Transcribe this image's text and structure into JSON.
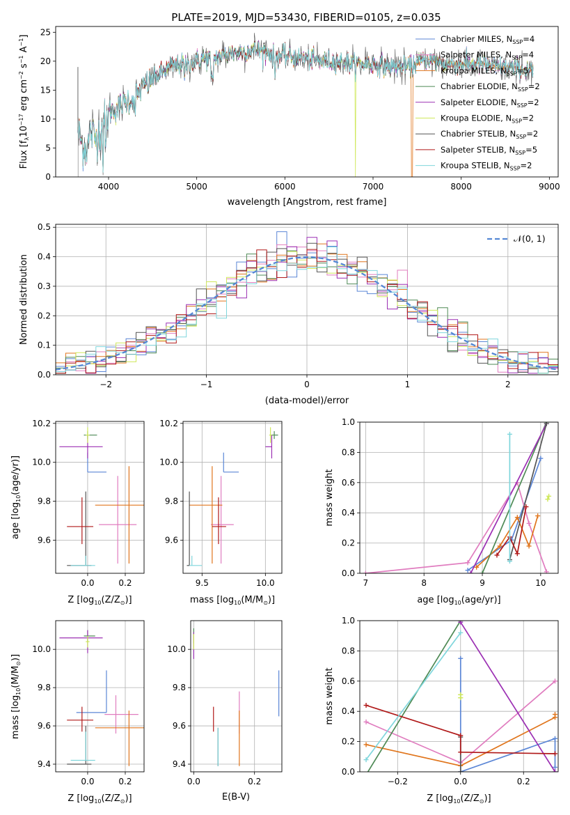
{
  "title": "PLATE=2019, MJD=53430, FIBERID=0105, z=0.035",
  "colors": {
    "chabrier_miles": "#5b86d6",
    "salpeter_miles": "#e07cbf",
    "kroupa_miles": "#e0751c",
    "chabrier_elodie": "#4e8a55",
    "salpeter_elodie": "#9b2fb3",
    "kroupa_elodie": "#cfe85a",
    "chabrier_stelib": "#555555",
    "salpeter_stelib": "#b01818",
    "kroupa_stelib": "#7fd6dc",
    "gaussian": "#5588d5",
    "grid": "#b0b0b0"
  },
  "chart_data": [
    {
      "type": "line",
      "xlabel": "wavelength [Angstrom, rest frame]",
      "ylabel": "Flux [f",
      "ylabel_sub": "λ",
      "ylabel_mid": "10",
      "ylabel_sup1": "−17",
      "ylabel_rest": " erg cm",
      "ylabel_sup2": "−2",
      "ylabel_s": " s",
      "ylabel_sup3": "−1",
      "ylabel_a": " A",
      "ylabel_sup4": "−1",
      "ylabel_end": "]",
      "xlim": [
        3400,
        9100
      ],
      "ylim": [
        0,
        26
      ],
      "xticks": [
        "4000",
        "5000",
        "6000",
        "7000",
        "8000",
        "9000"
      ],
      "yticks": [
        "0",
        "5",
        "10",
        "15",
        "20",
        "25"
      ],
      "grid": false,
      "legend_position": "upper-right",
      "legend": [
        {
          "label": "Chabrier MILES, N",
          "sub": "SSP",
          "n": "=4"
        },
        {
          "label": "Salpeter MILES, N",
          "sub": "SSP",
          "n": "=4"
        },
        {
          "label": "Kroupa MILES, N",
          "sub": "SSP",
          "n": "=5"
        },
        {
          "label": "Chabrier ELODIE, N",
          "sub": "SSP",
          "n": "=2"
        },
        {
          "label": "Salpeter ELODIE, N",
          "sub": "SSP",
          "n": "=2"
        },
        {
          "label": "Kroupa ELODIE, N",
          "sub": "SSP",
          "n": "=2"
        },
        {
          "label": "Chabrier STELIB, N",
          "sub": "SSP",
          "n": "=2"
        },
        {
          "label": "Salpeter STELIB, N",
          "sub": "SSP",
          "n": "=5"
        },
        {
          "label": "Kroupa STELIB, N",
          "sub": "SSP",
          "n": "=2"
        }
      ],
      "spectrum_anchors": {
        "x": [
          3650,
          3700,
          3760,
          3800,
          3850,
          3900,
          3950,
          4000,
          4100,
          4200,
          4300,
          4400,
          4500,
          4600,
          4700,
          4800,
          4900,
          5000,
          5100,
          5200,
          5300,
          5400,
          5500,
          5600,
          5700,
          5800,
          5900,
          6000,
          6200,
          6400,
          6600,
          6800,
          7000,
          7200,
          7400,
          7500,
          7600,
          7800,
          8000,
          8200,
          8400,
          8600,
          8800
        ],
        "y": [
          8.5,
          5.5,
          5.0,
          8.0,
          6.5,
          8.0,
          9.5,
          11.0,
          12.0,
          13.0,
          14.0,
          15.5,
          17.0,
          18.0,
          19.0,
          19.5,
          19.5,
          20.0,
          20.5,
          20.5,
          21.0,
          21.5,
          21.5,
          22.0,
          22.0,
          21.5,
          21.0,
          21.0,
          20.5,
          20.0,
          20.0,
          19.5,
          19.5,
          19.0,
          19.0,
          19.5,
          20.5,
          19.5,
          19.5,
          19.5,
          19.0,
          18.8,
          18.5
        ]
      },
      "features": [
        {
          "note": "orange cutoff",
          "x": 7430
        },
        {
          "note": "yellow dip",
          "x": 6800
        }
      ]
    },
    {
      "type": "histogram",
      "xlabel": "(data-model)/error",
      "ylabel": "Normed distribution",
      "xlim": [
        -2.5,
        2.5
      ],
      "ylim": [
        0,
        0.51
      ],
      "xticks": [
        "−2",
        "−1",
        "0",
        "1",
        "2"
      ],
      "yticks": [
        "0.0",
        "0.1",
        "0.2",
        "0.3",
        "0.4",
        "0.5"
      ],
      "grid": true,
      "legend_position": "upper-right",
      "legend_label": "𝒩(0, 1)",
      "bin_width": 0.1,
      "bin_start": -2.5
    },
    {
      "type": "scatter",
      "name": "age_vs_Z",
      "xlabel_pre": "Z [log",
      "xlabel_sub": "10",
      "xlabel_post": "(Z/Z",
      "xlabel_sub2": "⊙",
      "xlabel_end": ")]",
      "ylabel_pre": "age  [log",
      "ylabel_sub": "10",
      "ylabel_post": "(age/yr)]",
      "xlim": [
        -0.17,
        0.3
      ],
      "ylim": [
        9.43,
        10.21
      ],
      "xticks": [
        "0.0",
        "0.2"
      ],
      "yticks": [
        "9.6",
        "9.8",
        "10.0",
        "10.2"
      ],
      "grid": true,
      "points": [
        {
          "series": "chabrier_miles",
          "x": 0.0,
          "y": 9.95,
          "xerr": [
            0.0,
            0.1
          ],
          "yerr": [
            0.0,
            0.1
          ]
        },
        {
          "series": "salpeter_miles",
          "x": 0.16,
          "y": 9.68,
          "xerr": [
            0.1,
            0.1
          ],
          "yerr": [
            0.2,
            0.25
          ]
        },
        {
          "series": "kroupa_miles",
          "x": 0.22,
          "y": 9.78,
          "xerr": [
            0.18,
            0.08
          ],
          "yerr": [
            0.3,
            0.2
          ]
        },
        {
          "series": "chabrier_elodie",
          "x": 0.0,
          "y": 10.14,
          "xerr": [
            0.02,
            0.05
          ],
          "yerr": [
            0.02,
            0.02
          ]
        },
        {
          "series": "salpeter_elodie",
          "x": 0.0,
          "y": 10.08,
          "xerr": [
            0.15,
            0.08
          ],
          "yerr": [
            0.06,
            0.06
          ]
        },
        {
          "series": "kroupa_elodie",
          "x": 0.0,
          "y": 10.14,
          "xerr": [
            0.01,
            0.01
          ],
          "yerr": [
            0.04,
            0.04
          ]
        },
        {
          "series": "chabrier_stelib",
          "x": -0.01,
          "y": 9.47,
          "xerr": [
            0.1,
            0.03
          ],
          "yerr": [
            0.0,
            0.38
          ]
        },
        {
          "series": "salpeter_stelib",
          "x": -0.03,
          "y": 9.67,
          "xerr": [
            0.08,
            0.06
          ],
          "yerr": [
            0.09,
            0.15
          ]
        },
        {
          "series": "kroupa_stelib",
          "x": -0.01,
          "y": 9.47,
          "xerr": [
            0.08,
            0.05
          ],
          "yerr": [
            0.0,
            0.05
          ]
        }
      ]
    },
    {
      "type": "scatter",
      "name": "age_vs_mass",
      "xlabel_pre": "mass [log",
      "xlabel_sub": "10",
      "xlabel_post": "(M/M",
      "xlabel_sub2": "⊙",
      "xlabel_end": ")]",
      "xlim": [
        9.35,
        10.13
      ],
      "ylim": [
        9.43,
        10.21
      ],
      "xticks": [
        "9.5",
        "10.0"
      ],
      "yticks": [
        "9.6",
        "9.8",
        "10.0",
        "10.2"
      ],
      "grid": true,
      "points": [
        {
          "series": "chabrier_miles",
          "x": 9.67,
          "y": 9.95,
          "xerr": [
            0.0,
            0.12
          ],
          "yerr": [
            0.0,
            0.1
          ]
        },
        {
          "series": "salpeter_miles",
          "x": 9.65,
          "y": 9.68,
          "xerr": [
            0.08,
            0.1
          ],
          "yerr": [
            0.2,
            0.25
          ]
        },
        {
          "series": "kroupa_miles",
          "x": 9.58,
          "y": 9.78,
          "xerr": [
            0.18,
            0.08
          ],
          "yerr": [
            0.3,
            0.2
          ]
        },
        {
          "series": "chabrier_elodie",
          "x": 10.07,
          "y": 10.14,
          "xerr": [
            0.03,
            0.03
          ],
          "yerr": [
            0.02,
            0.02
          ]
        },
        {
          "series": "salpeter_elodie",
          "x": 10.05,
          "y": 10.08,
          "xerr": [
            0.05,
            0.0
          ],
          "yerr": [
            0.06,
            0.06
          ]
        },
        {
          "series": "kroupa_elodie",
          "x": 10.04,
          "y": 10.14,
          "xerr": [
            0.01,
            0.01
          ],
          "yerr": [
            0.04,
            0.04
          ]
        },
        {
          "series": "chabrier_stelib",
          "x": 9.4,
          "y": 9.47,
          "xerr": [
            0.02,
            0.0
          ],
          "yerr": [
            0.0,
            0.38
          ]
        },
        {
          "series": "salpeter_stelib",
          "x": 9.63,
          "y": 9.67,
          "xerr": [
            0.05,
            0.06
          ],
          "yerr": [
            0.09,
            0.15
          ]
        },
        {
          "series": "kroupa_stelib",
          "x": 9.42,
          "y": 9.47,
          "xerr": [
            0.02,
            0.08
          ],
          "yerr": [
            0.0,
            0.05
          ]
        }
      ]
    },
    {
      "type": "line",
      "name": "mass_weight_vs_age",
      "xlabel_pre": "age  [log",
      "xlabel_sub": "10",
      "xlabel_post": "(age/yr)]",
      "ylabel": "mass weight",
      "xlim": [
        6.9,
        10.3
      ],
      "ylim": [
        0,
        1
      ],
      "xticks": [
        "7",
        "8",
        "9",
        "10"
      ],
      "yticks": [
        "0.0",
        "0.2",
        "0.4",
        "0.6",
        "0.8",
        "1.0"
      ],
      "grid": true,
      "series": [
        {
          "key": "chabrier_miles",
          "x": [
            8.75,
            9.5,
            10.0
          ],
          "y": [
            0.02,
            0.22,
            0.76
          ]
        },
        {
          "key": "salpeter_miles",
          "x": [
            7.0,
            8.75,
            9.6,
            9.8,
            10.1
          ],
          "y": [
            0.0,
            0.07,
            0.6,
            0.33,
            0.01
          ]
        },
        {
          "key": "kroupa_miles",
          "x": [
            8.9,
            9.3,
            9.6,
            9.8,
            9.95
          ],
          "y": [
            0.04,
            0.18,
            0.37,
            0.18,
            0.38
          ]
        },
        {
          "key": "chabrier_elodie",
          "x": [
            9.0,
            10.1
          ],
          "y": [
            0.0,
            1.0
          ]
        },
        {
          "key": "salpeter_elodie",
          "x": [
            8.8,
            10.1
          ],
          "y": [
            0.0,
            0.99
          ]
        },
        {
          "key": "kroupa_elodie",
          "x": [
            10.12,
            10.14
          ],
          "y": [
            0.49,
            0.51
          ]
        },
        {
          "key": "chabrier_stelib",
          "x": [
            9.47,
            10.1
          ],
          "y": [
            0.09,
            0.99
          ]
        },
        {
          "key": "salpeter_stelib",
          "x": [
            9.25,
            9.47,
            9.6,
            9.75
          ],
          "y": [
            0.12,
            0.24,
            0.13,
            0.44
          ]
        },
        {
          "key": "kroupa_stelib",
          "x": [
            9.47,
            9.47
          ],
          "y": [
            0.08,
            0.92
          ]
        }
      ]
    },
    {
      "type": "scatter",
      "name": "mass_vs_Z",
      "xlabel_pre": "Z [log",
      "xlabel_sub": "10",
      "xlabel_post": "(Z/Z",
      "xlabel_sub2": "⊙",
      "xlabel_end": ")]",
      "ylabel_pre": "mass [log",
      "ylabel_sub": "10",
      "ylabel_post": "(M/M",
      "ylabel_sub2": "⊙",
      "ylabel_end": ")]",
      "xlim": [
        -0.17,
        0.3
      ],
      "ylim": [
        9.36,
        10.15
      ],
      "xticks": [
        "0.0",
        "0.2"
      ],
      "yticks": [
        "9.4",
        "9.6",
        "9.8",
        "10.0"
      ],
      "grid": true,
      "points": [
        {
          "series": "chabrier_miles",
          "x": 0.1,
          "y": 9.67,
          "xerr": [
            0.16,
            0.0
          ],
          "yerr": [
            0.0,
            0.22
          ]
        },
        {
          "series": "salpeter_miles",
          "x": 0.15,
          "y": 9.66,
          "xerr": [
            0.06,
            0.12
          ],
          "yerr": [
            0.1,
            0.1
          ]
        },
        {
          "series": "kroupa_miles",
          "x": 0.22,
          "y": 9.59,
          "xerr": [
            0.18,
            0.08
          ],
          "yerr": [
            0.2,
            0.09
          ]
        },
        {
          "series": "chabrier_elodie",
          "x": 0.0,
          "y": 10.07,
          "xerr": [
            0.02,
            0.04
          ],
          "yerr": [
            0.03,
            0.03
          ]
        },
        {
          "series": "salpeter_elodie",
          "x": 0.0,
          "y": 10.06,
          "xerr": [
            0.15,
            0.08
          ],
          "yerr": [
            0.08,
            0.04
          ]
        },
        {
          "series": "kroupa_elodie",
          "x": 0.0,
          "y": 10.04,
          "xerr": [
            0.01,
            0.01
          ],
          "yerr": [
            0.03,
            0.03
          ]
        },
        {
          "series": "chabrier_stelib",
          "x": -0.01,
          "y": 9.4,
          "xerr": [
            0.1,
            0.03
          ],
          "yerr": [
            0.0,
            0.2
          ]
        },
        {
          "series": "salpeter_stelib",
          "x": -0.03,
          "y": 9.63,
          "xerr": [
            0.08,
            0.06
          ],
          "yerr": [
            0.06,
            0.07
          ]
        },
        {
          "series": "kroupa_stelib",
          "x": -0.01,
          "y": 9.42,
          "xerr": [
            0.08,
            0.05
          ],
          "yerr": [
            0.0,
            0.15
          ]
        }
      ]
    },
    {
      "type": "scatter",
      "name": "mass_vs_ebv",
      "xlabel": "E(B-V)",
      "xlim": [
        -0.01,
        0.29
      ],
      "ylim": [
        9.36,
        10.15
      ],
      "xticks": [
        "0.0",
        "0.2"
      ],
      "yticks": [
        "9.4",
        "9.6",
        "9.8",
        "10.0"
      ],
      "grid": true,
      "points": [
        {
          "series": "chabrier_miles",
          "x": 0.28,
          "y": 9.77,
          "xerr": [
            0,
            0
          ],
          "yerr": [
            0.12,
            0.12
          ]
        },
        {
          "series": "salpeter_miles",
          "x": 0.15,
          "y": 9.66,
          "xerr": [
            0,
            0
          ],
          "yerr": [
            0.1,
            0.12
          ]
        },
        {
          "series": "kroupa_miles",
          "x": 0.15,
          "y": 9.54,
          "xerr": [
            0,
            0
          ],
          "yerr": [
            0.15,
            0.14
          ]
        },
        {
          "series": "chabrier_elodie",
          "x": 0.0,
          "y": 10.07,
          "xerr": [
            0,
            0
          ],
          "yerr": [
            0.04,
            0.04
          ]
        },
        {
          "series": "salpeter_elodie",
          "x": 0.0,
          "y": 10.02,
          "xerr": [
            0,
            0
          ],
          "yerr": [
            0.07,
            0.07
          ]
        },
        {
          "series": "kroupa_elodie",
          "x": 0.0,
          "y": 10.04,
          "xerr": [
            0,
            0
          ],
          "yerr": [
            0.04,
            0.04
          ]
        },
        {
          "series": "chabrier_stelib",
          "x": 0.08,
          "y": 9.49,
          "xerr": [
            0,
            0
          ],
          "yerr": [
            0.1,
            0.1
          ]
        },
        {
          "series": "salpeter_stelib",
          "x": 0.065,
          "y": 9.63,
          "xerr": [
            0,
            0
          ],
          "yerr": [
            0.06,
            0.07
          ]
        },
        {
          "series": "kroupa_stelib",
          "x": 0.08,
          "y": 9.49,
          "xerr": [
            0,
            0
          ],
          "yerr": [
            0.1,
            0.1
          ]
        }
      ]
    },
    {
      "type": "line",
      "name": "mass_weight_vs_Z",
      "xlabel_pre": "Z [log",
      "xlabel_sub": "10",
      "xlabel_post": "(Z/Z",
      "xlabel_sub2": "⊙",
      "xlabel_end": ")]",
      "ylabel": "mass weight",
      "xlim": [
        -0.32,
        0.31
      ],
      "ylim": [
        0,
        1
      ],
      "xticks": [
        "−0.2",
        "0.0",
        "0.2"
      ],
      "yticks": [
        "0.0",
        "0.2",
        "0.4",
        "0.6",
        "0.8",
        "1.0"
      ],
      "grid": true,
      "series": [
        {
          "key": "chabrier_miles",
          "x": [
            0.0,
            0.0,
            0.3,
            0.3
          ],
          "y": [
            0.75,
            0.0,
            0.22,
            0.03
          ]
        },
        {
          "key": "salpeter_miles",
          "x": [
            -0.3,
            0.0,
            0.3
          ],
          "y": [
            0.33,
            0.06,
            0.6
          ]
        },
        {
          "key": "kroupa_miles",
          "x": [
            -0.3,
            0.0,
            0.3,
            0.3
          ],
          "y": [
            0.18,
            0.04,
            0.36,
            0.38
          ]
        },
        {
          "key": "chabrier_elodie",
          "x": [
            -0.3,
            0.0
          ],
          "y": [
            -0.02,
            1.0
          ]
        },
        {
          "key": "salpeter_elodie",
          "x": [
            0.0,
            0.3
          ],
          "y": [
            0.99,
            0.0
          ]
        },
        {
          "key": "kroupa_elodie",
          "x": [
            0.0,
            0.0
          ],
          "y": [
            0.49,
            0.51
          ]
        },
        {
          "key": "chabrier_stelib",
          "x": [
            0.0,
            0.0
          ],
          "y": [
            0.0,
            0.23
          ]
        },
        {
          "key": "salpeter_stelib",
          "x": [
            -0.3,
            0.0,
            0.0,
            0.3
          ],
          "y": [
            0.44,
            0.24,
            0.13,
            0.12
          ]
        },
        {
          "key": "kroupa_stelib",
          "x": [
            -0.3,
            0.0
          ],
          "y": [
            0.08,
            0.92
          ]
        }
      ]
    }
  ]
}
